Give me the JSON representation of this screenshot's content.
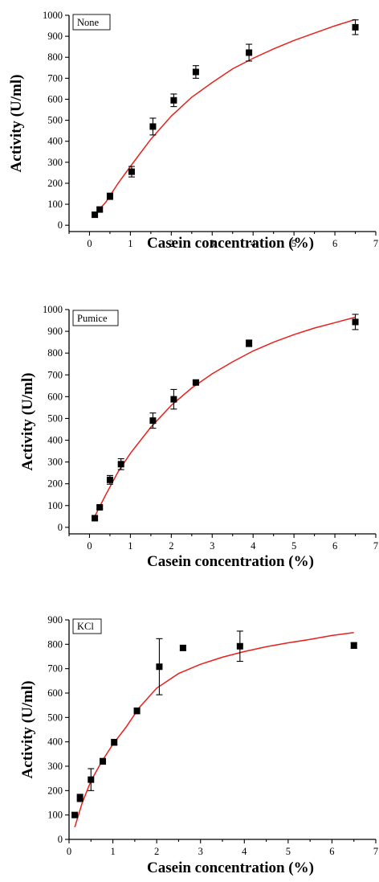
{
  "colors": {
    "fit_line": "#e8201b",
    "points": "#000000"
  },
  "chart_data": [
    {
      "type": "scatter",
      "panel_label": "None",
      "xlabel": "Casein concentration (%)",
      "ylabel": "Activity (U/ml)",
      "xlim": [
        -0.5,
        7
      ],
      "ylim": [
        -30,
        1000
      ],
      "xticks": [
        0,
        1,
        2,
        3,
        4,
        5,
        6,
        7
      ],
      "yticks": [
        0,
        100,
        200,
        300,
        400,
        500,
        600,
        700,
        800,
        900,
        1000
      ],
      "series": [
        {
          "x": [
            0.13,
            0.25,
            0.5,
            1.03,
            1.55,
            2.06,
            2.6,
            3.9,
            6.5
          ],
          "y": [
            50,
            75,
            138,
            255,
            470,
            595,
            730,
            822,
            943
          ],
          "err": [
            10,
            10,
            15,
            25,
            40,
            30,
            30,
            40,
            35
          ]
        }
      ],
      "fit_curve": {
        "x": [
          0.1,
          0.4,
          0.7,
          1.0,
          1.5,
          2.0,
          2.5,
          3.0,
          3.5,
          4.0,
          4.5,
          5.0,
          5.5,
          6.0,
          6.5
        ],
        "y": [
          45,
          110,
          200,
          280,
          410,
          520,
          610,
          680,
          745,
          795,
          840,
          880,
          915,
          950,
          980
        ]
      }
    },
    {
      "type": "scatter",
      "panel_label": "Pumice",
      "xlabel": "Casein concentration (%)",
      "ylabel": "Activity (U/ml)",
      "xlim": [
        -0.5,
        7
      ],
      "ylim": [
        -30,
        1000
      ],
      "xticks": [
        0,
        1,
        2,
        3,
        4,
        5,
        6,
        7
      ],
      "yticks": [
        0,
        100,
        200,
        300,
        400,
        500,
        600,
        700,
        800,
        900,
        1000
      ],
      "series": [
        {
          "x": [
            0.13,
            0.25,
            0.5,
            0.77,
            1.55,
            2.06,
            2.6,
            3.9,
            6.5
          ],
          "y": [
            42,
            92,
            218,
            290,
            490,
            588,
            665,
            845,
            943
          ],
          "err": [
            8,
            8,
            20,
            25,
            35,
            45,
            10,
            15,
            35
          ]
        }
      ],
      "fit_curve": {
        "x": [
          0.1,
          0.4,
          0.7,
          1.0,
          1.5,
          2.0,
          2.5,
          3.0,
          3.5,
          4.0,
          4.5,
          5.0,
          5.5,
          6.0,
          6.5
        ],
        "y": [
          40,
          150,
          255,
          340,
          460,
          560,
          640,
          705,
          760,
          810,
          850,
          885,
          915,
          940,
          965
        ]
      }
    },
    {
      "type": "scatter",
      "panel_label": "KCl",
      "xlabel": "Casein concentration (%)",
      "ylabel": "Activity (U/ml)",
      "xlim": [
        0,
        7
      ],
      "ylim": [
        0,
        900
      ],
      "xticks": [
        0,
        1,
        2,
        3,
        4,
        5,
        6,
        7
      ],
      "yticks": [
        0,
        100,
        200,
        300,
        400,
        500,
        600,
        700,
        800,
        900
      ],
      "series": [
        {
          "x": [
            0.13,
            0.25,
            0.5,
            0.77,
            1.03,
            1.55,
            2.06,
            2.6,
            3.9,
            6.5
          ],
          "y": [
            100,
            170,
            245,
            320,
            398,
            527,
            708,
            785,
            792,
            795
          ],
          "err": [
            8,
            15,
            45,
            12,
            12,
            12,
            115,
            10,
            62,
            12
          ]
        }
      ],
      "fit_curve": {
        "x": [
          0.13,
          0.3,
          0.5,
          0.75,
          1.0,
          1.3,
          1.6,
          2.0,
          2.5,
          3.0,
          3.5,
          4.0,
          4.5,
          5.0,
          5.5,
          6.0,
          6.5
        ],
        "y": [
          50,
          150,
          240,
          320,
          390,
          460,
          540,
          620,
          680,
          718,
          747,
          770,
          790,
          806,
          820,
          836,
          848
        ]
      }
    }
  ]
}
